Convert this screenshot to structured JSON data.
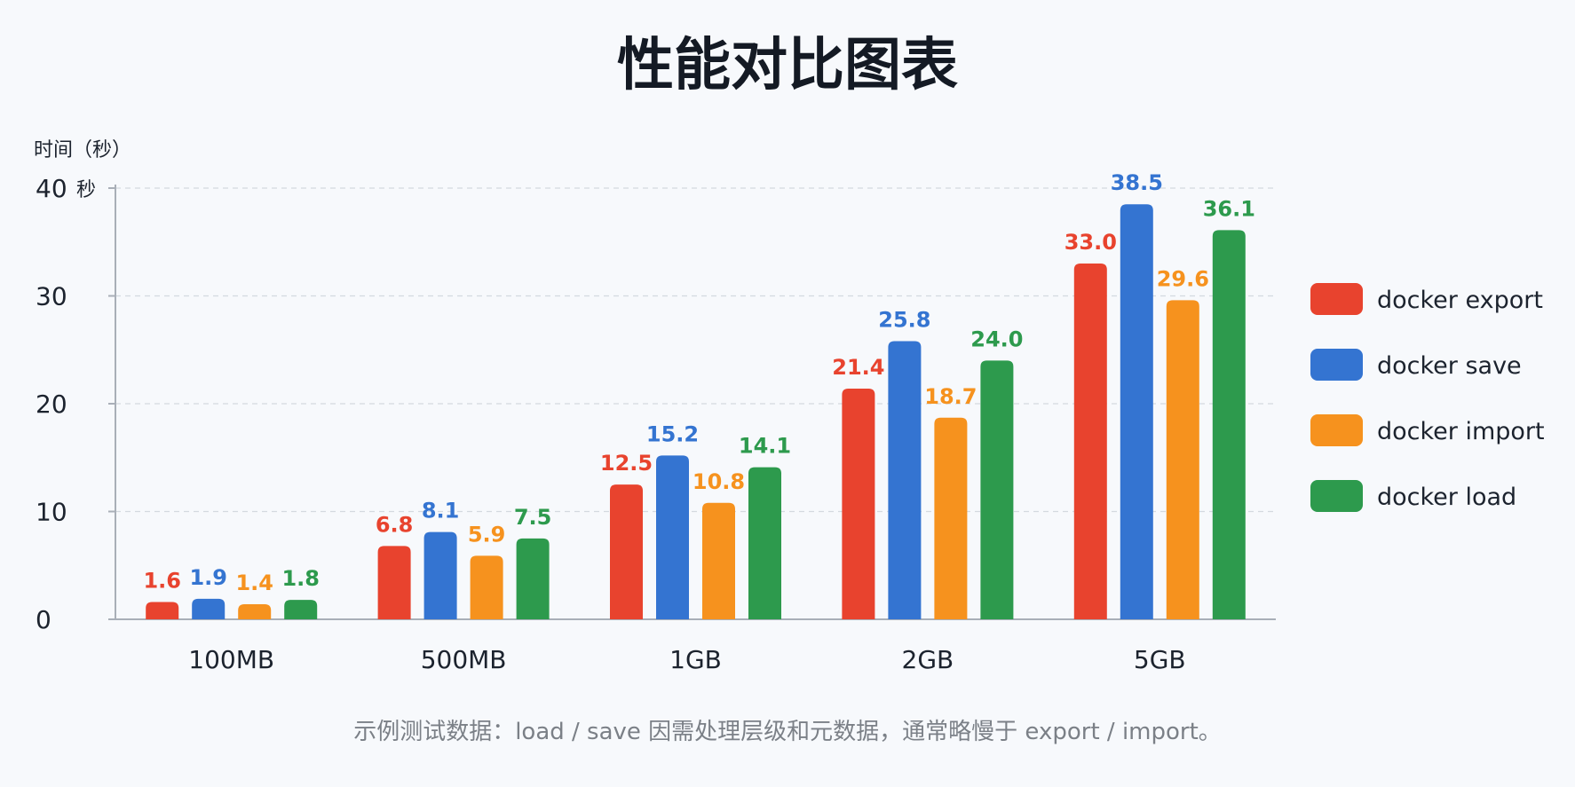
{
  "chart_data": {
    "type": "bar",
    "title": "性能对比图表",
    "ylabel": "时间（秒）",
    "y_unit_label": "秒",
    "xlabel": "",
    "ylim": [
      0,
      40
    ],
    "yticks": [
      0,
      10,
      20,
      30,
      40
    ],
    "grid": true,
    "legend_position": "right",
    "categories": [
      "100MB",
      "500MB",
      "1GB",
      "2GB",
      "5GB"
    ],
    "series": [
      {
        "name": "docker export",
        "color": "#e8432e",
        "values": [
          1.6,
          6.8,
          12.5,
          21.4,
          33.0
        ]
      },
      {
        "name": "docker save",
        "color": "#3474d1",
        "values": [
          1.9,
          8.1,
          15.2,
          25.8,
          38.5
        ]
      },
      {
        "name": "docker import",
        "color": "#f6921e",
        "values": [
          1.4,
          5.9,
          10.8,
          18.7,
          29.6
        ]
      },
      {
        "name": "docker load",
        "color": "#2d9a4d",
        "values": [
          1.8,
          7.5,
          14.1,
          24.0,
          36.1
        ]
      }
    ],
    "note": "示例测试数据：load / save 因需处理层级和元数据，通常略慢于 export / import。"
  }
}
